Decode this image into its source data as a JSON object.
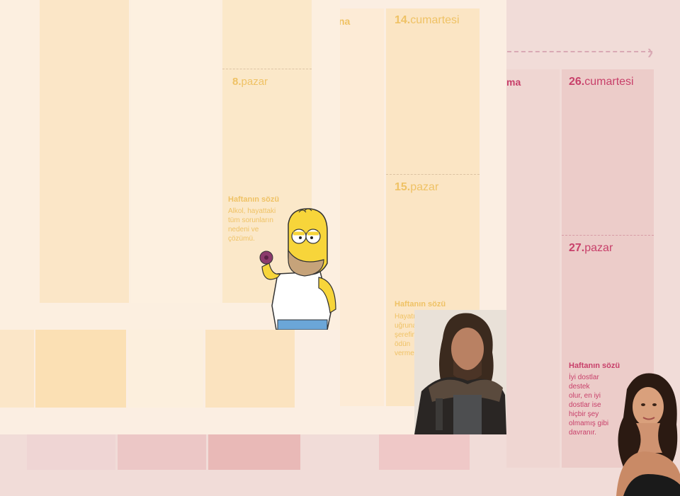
{
  "colors": {
    "gold_text": "#efc265",
    "rose_text": "#c8406a"
  },
  "gold_partial_label": "na",
  "rose_partial_label": "ma",
  "days": {
    "d14": {
      "num": "14.",
      "name": "cumartesi"
    },
    "d8": {
      "num": "8.",
      "name": "pazar"
    },
    "d15": {
      "num": "15.",
      "name": "pazar"
    },
    "d26": {
      "num": "26.",
      "name": "cumartesi"
    },
    "d27": {
      "num": "27.",
      "name": "pazar"
    }
  },
  "quotes": {
    "homer": {
      "title": "Haftanın sözü",
      "body": [
        "Alkol, hayattaki",
        "tüm sorunların",
        "nedeni ve",
        "çözümü."
      ],
      "icon": "homer-simpson-illustration"
    },
    "ned": {
      "title": "Haftanın sözü",
      "body": [
        "Hayatın",
        "uğruna",
        "şerefinden",
        "ödün",
        "vermem."
      ],
      "icon": "ned-stark-photo"
    },
    "eva": {
      "title": "Haftanın sözü",
      "body": [
        "İyi dostlar",
        "destek",
        "olur, en iyi",
        "dostlar ise",
        "hiçbir şey",
        "olmamış gibi",
        "davranır."
      ],
      "icon": "woman-portrait-photo"
    }
  }
}
